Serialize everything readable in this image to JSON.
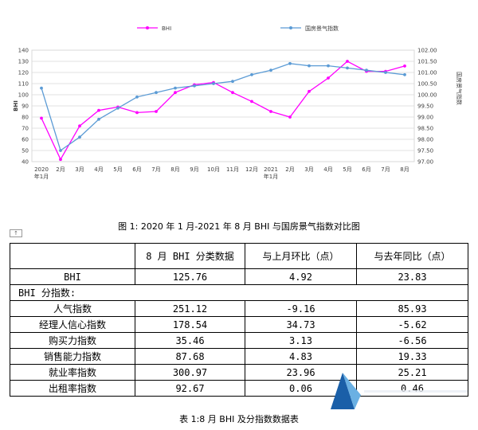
{
  "chart_data": {
    "type": "line",
    "categories": [
      "2020\n年1月",
      "2月",
      "3月",
      "4月",
      "5月",
      "6月",
      "7月",
      "8月",
      "9月",
      "10月",
      "11月",
      "12月",
      "2021\n年1月",
      "2月",
      "3月",
      "4月",
      "5月",
      "6月",
      "7月",
      "8月"
    ],
    "series": [
      {
        "name": "BHI",
        "axis": "left",
        "color": "#ff00ff",
        "values": [
          79,
          42,
          72,
          86,
          89,
          84,
          85,
          102,
          109,
          111,
          102,
          94,
          85,
          80,
          103,
          115,
          130,
          121,
          121,
          125.76
        ]
      },
      {
        "name": "国房景气指数",
        "axis": "right",
        "color": "#5b9bd5",
        "values": [
          100.3,
          97.5,
          98.1,
          98.9,
          99.4,
          99.9,
          100.1,
          100.3,
          100.4,
          100.5,
          100.6,
          100.9,
          101.1,
          101.4,
          101.3,
          101.3,
          101.2,
          101.1,
          101.0,
          100.9
        ]
      }
    ],
    "ylim": [
      40,
      140
    ],
    "yticks": [
      40,
      50,
      60,
      70,
      80,
      90,
      100,
      110,
      120,
      130,
      140
    ],
    "ylim_right": [
      97.0,
      102.0
    ],
    "yticks_right": [
      "97.00",
      "97.50",
      "98.00",
      "98.50",
      "99.00",
      "99.50",
      "100.00",
      "100.50",
      "101.00",
      "101.50",
      "102.00"
    ],
    "ylabel": "BHI",
    "ylabel_right": "国房景气指数",
    "grid": true,
    "legend_position": "top"
  },
  "captions": {
    "figure": "图 1: 2020 年 1 月-2021 年 8 月 BHI 与国房景气指数对比图",
    "table": "表 1:8 月 BHI 及分指数数据表"
  },
  "table": {
    "headers": [
      "",
      "8 月 BHI 分类数据",
      "与上月环比（点）",
      "与去年同比（点）"
    ],
    "bhi_row": [
      "BHI",
      "125.76",
      "4.92",
      "23.83"
    ],
    "section_label": "BHI 分指数:",
    "rows": [
      [
        "人气指数",
        "251.12",
        "-9.16",
        "85.93"
      ],
      [
        "经理人信心指数",
        "178.54",
        "34.73",
        "-5.62"
      ],
      [
        "购买力指数",
        "35.46",
        "3.13",
        "-6.56"
      ],
      [
        "销售能力指数",
        "87.68",
        "4.83",
        "19.33"
      ],
      [
        "就业率指数",
        "300.97",
        "23.96",
        "25.21"
      ],
      [
        "出租率指数",
        "92.67",
        "0.06",
        "0.46"
      ]
    ]
  },
  "marker_symbol": "↑"
}
